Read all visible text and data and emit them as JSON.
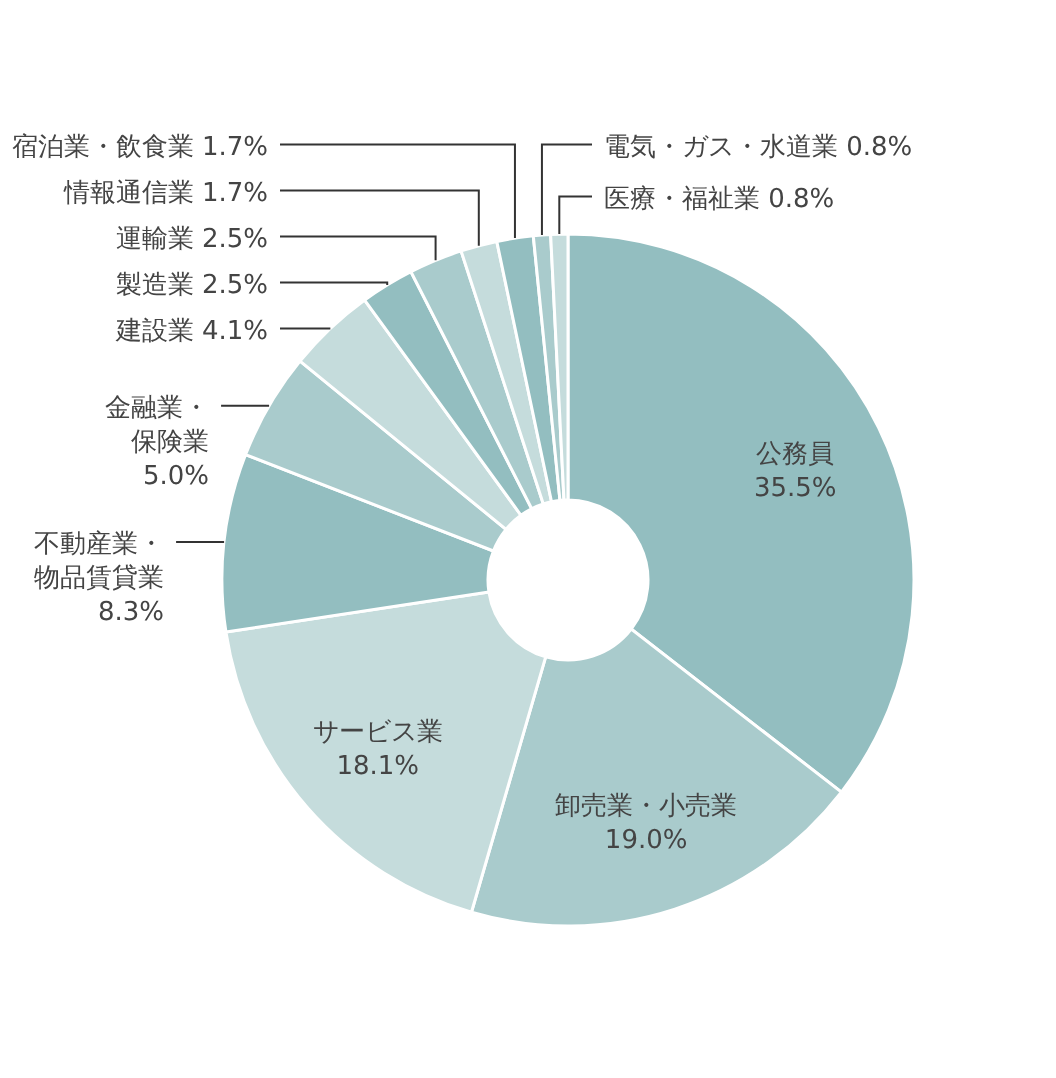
{
  "chart_data": {
    "type": "donut",
    "categories": [
      "公務員",
      "卸売業・小売業",
      "サービス業",
      "不動産業・物品賃貸業",
      "金融業・保険業",
      "建設業",
      "製造業",
      "運輸業",
      "情報通信業",
      "宿泊業・飲食業",
      "電気・ガス・水道業",
      "医療・福祉業"
    ],
    "values": [
      35.5,
      19.0,
      18.1,
      8.3,
      5.0,
      4.1,
      2.5,
      2.5,
      1.7,
      1.7,
      0.8,
      0.8
    ],
    "value_labels": [
      "35.5%",
      "19.0%",
      "18.1%",
      "8.3%",
      "5.0%",
      "4.1%",
      "2.5%",
      "2.5%",
      "1.7%",
      "1.7%",
      "0.8%",
      "0.8%"
    ],
    "colors": [
      "#93bec0",
      "#a9cbcc",
      "#c5dcdc",
      "#93bec0",
      "#a9cbcc",
      "#c5dcdc",
      "#93bec0",
      "#a9cbcc",
      "#c5dcdc",
      "#93bec0",
      "#a9cbcc",
      "#c5dcdc"
    ]
  }
}
